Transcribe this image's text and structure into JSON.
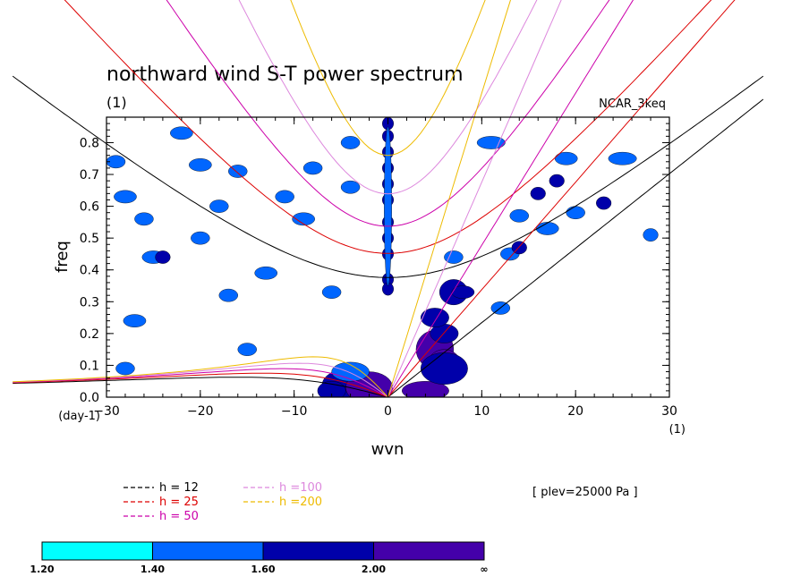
{
  "chart_data": {
    "type": "contour",
    "title": "northward wind S-T power spectrum",
    "subtitle_left": "(1)",
    "subtitle_right": "NCAR_3keq",
    "xlabel": "wvn",
    "ylabel": "freq",
    "x_unit_label": "(1)",
    "y_unit_label": "(day-1)",
    "xlim": [
      -30,
      30
    ],
    "ylim": [
      0,
      0.88
    ],
    "xticks": [
      -30,
      -20,
      -10,
      0,
      10,
      20,
      30
    ],
    "xtick_labels": [
      "−30",
      "−20",
      "−10",
      "0",
      "10",
      "20",
      "30"
    ],
    "yticks": [
      0.0,
      0.1,
      0.2,
      0.3,
      0.4,
      0.5,
      0.6,
      0.7,
      0.8
    ],
    "ytick_labels": [
      "0.0",
      "0.1",
      "0.2",
      "0.3",
      "0.4",
      "0.5",
      "0.6",
      "0.7",
      "0.8"
    ],
    "annotation": "[ plev=25000 Pa ]",
    "dispersion_curves": [
      {
        "label": "h = 12",
        "h": 12,
        "color": "#000000"
      },
      {
        "label": "h = 25",
        "h": 25,
        "color": "#dd0000"
      },
      {
        "label": "h = 50",
        "h": 50,
        "color": "#cc00aa"
      },
      {
        "label": "h =100",
        "h": 100,
        "color": "#dd88dd"
      },
      {
        "label": "h =200",
        "h": 200,
        "color": "#eebb00"
      }
    ],
    "colorbar": {
      "levels": [
        "1.20",
        "1.40",
        "1.60",
        "2.00",
        "∞"
      ],
      "colors": [
        "#00ffff",
        "#0066ff",
        "#0000aa",
        "#4400aa"
      ]
    },
    "contours": [
      {
        "x": 0,
        "y": 0.86,
        "w": 0.6,
        "h": 0.02,
        "level": 2
      },
      {
        "x": 0,
        "y": 0.82,
        "w": 0.6,
        "h": 0.02,
        "level": 2
      },
      {
        "x": 0,
        "y": 0.77,
        "w": 0.6,
        "h": 0.02,
        "level": 2
      },
      {
        "x": 0,
        "y": 0.72,
        "w": 0.6,
        "h": 0.02,
        "level": 2
      },
      {
        "x": 0,
        "y": 0.67,
        "w": 0.6,
        "h": 0.02,
        "level": 2
      },
      {
        "x": 0,
        "y": 0.62,
        "w": 0.6,
        "h": 0.02,
        "level": 2
      },
      {
        "x": 0,
        "y": 0.55,
        "w": 0.6,
        "h": 0.02,
        "level": 2
      },
      {
        "x": 0,
        "y": 0.5,
        "w": 0.6,
        "h": 0.02,
        "level": 2
      },
      {
        "x": 0,
        "y": 0.45,
        "w": 0.6,
        "h": 0.02,
        "level": 2
      },
      {
        "x": 0,
        "y": 0.37,
        "w": 0.6,
        "h": 0.02,
        "level": 2
      },
      {
        "x": 0,
        "y": 0.34,
        "w": 0.6,
        "h": 0.02,
        "level": 2
      },
      {
        "x": 0,
        "y": 0.6,
        "w": 0.4,
        "h": 0.25,
        "level": 1
      },
      {
        "x": -4,
        "y": 0.04,
        "w": 3.0,
        "h": 0.05,
        "level": 2
      },
      {
        "x": -2,
        "y": 0.03,
        "w": 2.5,
        "h": 0.05,
        "level": 3
      },
      {
        "x": -4,
        "y": 0.08,
        "w": 2.0,
        "h": 0.03,
        "level": 1
      },
      {
        "x": -6,
        "y": 0.02,
        "w": 1.5,
        "h": 0.03,
        "level": 2
      },
      {
        "x": 5,
        "y": 0.15,
        "w": 2.0,
        "h": 0.06,
        "level": 3
      },
      {
        "x": 6,
        "y": 0.1,
        "w": 1.8,
        "h": 0.05,
        "level": 3
      },
      {
        "x": 6,
        "y": 0.2,
        "w": 1.5,
        "h": 0.03,
        "level": 2
      },
      {
        "x": 5,
        "y": 0.25,
        "w": 1.5,
        "h": 0.03,
        "level": 2
      },
      {
        "x": 7,
        "y": 0.33,
        "w": 1.5,
        "h": 0.04,
        "level": 2
      },
      {
        "x": 4,
        "y": 0.02,
        "w": 2.5,
        "h": 0.03,
        "level": 3
      },
      {
        "x": 6,
        "y": 0.09,
        "w": 2.5,
        "h": 0.05,
        "level": 2
      },
      {
        "x": 7,
        "y": 0.44,
        "w": 1.0,
        "h": 0.02,
        "level": 1
      },
      {
        "x": 13,
        "y": 0.45,
        "w": 1.0,
        "h": 0.02,
        "level": 1
      },
      {
        "x": 14,
        "y": 0.47,
        "w": 0.8,
        "h": 0.02,
        "level": 2
      },
      {
        "x": 18,
        "y": 0.68,
        "w": 0.8,
        "h": 0.02,
        "level": 2
      },
      {
        "x": 16,
        "y": 0.64,
        "w": 0.8,
        "h": 0.02,
        "level": 2
      },
      {
        "x": 19,
        "y": 0.75,
        "w": 1.2,
        "h": 0.02,
        "level": 1
      },
      {
        "x": 25,
        "y": 0.75,
        "w": 1.5,
        "h": 0.02,
        "level": 1
      },
      {
        "x": 12,
        "y": 0.28,
        "w": 1.0,
        "h": 0.02,
        "level": 1
      },
      {
        "x": 14,
        "y": 0.57,
        "w": 1.0,
        "h": 0.02,
        "level": 1
      },
      {
        "x": 20,
        "y": 0.58,
        "w": 1.0,
        "h": 0.02,
        "level": 1
      },
      {
        "x": 11,
        "y": 0.8,
        "w": 1.5,
        "h": 0.02,
        "level": 1
      },
      {
        "x": 8,
        "y": 0.33,
        "w": 1.2,
        "h": 0.02,
        "level": 2
      },
      {
        "x": 17,
        "y": 0.53,
        "w": 1.2,
        "h": 0.02,
        "level": 1
      },
      {
        "x": 23,
        "y": 0.61,
        "w": 0.8,
        "h": 0.02,
        "level": 2
      },
      {
        "x": 28,
        "y": 0.51,
        "w": 0.8,
        "h": 0.02,
        "level": 1
      },
      {
        "x": -29,
        "y": 0.74,
        "w": 1.0,
        "h": 0.02,
        "level": 1
      },
      {
        "x": -28,
        "y": 0.63,
        "w": 1.2,
        "h": 0.02,
        "level": 1
      },
      {
        "x": -26,
        "y": 0.56,
        "w": 1.0,
        "h": 0.02,
        "level": 1
      },
      {
        "x": -22,
        "y": 0.83,
        "w": 1.2,
        "h": 0.02,
        "level": 1
      },
      {
        "x": -20,
        "y": 0.73,
        "w": 1.2,
        "h": 0.02,
        "level": 1
      },
      {
        "x": -25,
        "y": 0.44,
        "w": 1.2,
        "h": 0.02,
        "level": 1
      },
      {
        "x": -24,
        "y": 0.44,
        "w": 0.8,
        "h": 0.02,
        "level": 2
      },
      {
        "x": -18,
        "y": 0.6,
        "w": 1.0,
        "h": 0.02,
        "level": 1
      },
      {
        "x": -17,
        "y": 0.32,
        "w": 1.0,
        "h": 0.02,
        "level": 1
      },
      {
        "x": -15,
        "y": 0.15,
        "w": 1.0,
        "h": 0.02,
        "level": 1
      },
      {
        "x": -11,
        "y": 0.63,
        "w": 1.0,
        "h": 0.02,
        "level": 1
      },
      {
        "x": -8,
        "y": 0.72,
        "w": 1.0,
        "h": 0.02,
        "level": 1
      },
      {
        "x": -9,
        "y": 0.56,
        "w": 1.2,
        "h": 0.02,
        "level": 1
      },
      {
        "x": -13,
        "y": 0.39,
        "w": 1.2,
        "h": 0.02,
        "level": 1
      },
      {
        "x": -6,
        "y": 0.33,
        "w": 1.0,
        "h": 0.02,
        "level": 1
      },
      {
        "x": -4,
        "y": 0.8,
        "w": 1.0,
        "h": 0.02,
        "level": 1
      },
      {
        "x": -27,
        "y": 0.24,
        "w": 1.2,
        "h": 0.02,
        "level": 1
      },
      {
        "x": -20,
        "y": 0.5,
        "w": 1.0,
        "h": 0.02,
        "level": 1
      },
      {
        "x": -16,
        "y": 0.71,
        "w": 1.0,
        "h": 0.02,
        "level": 1
      },
      {
        "x": -28,
        "y": 0.09,
        "w": 1.0,
        "h": 0.02,
        "level": 1
      },
      {
        "x": -4,
        "y": 0.66,
        "w": 1.0,
        "h": 0.02,
        "level": 1
      }
    ]
  }
}
